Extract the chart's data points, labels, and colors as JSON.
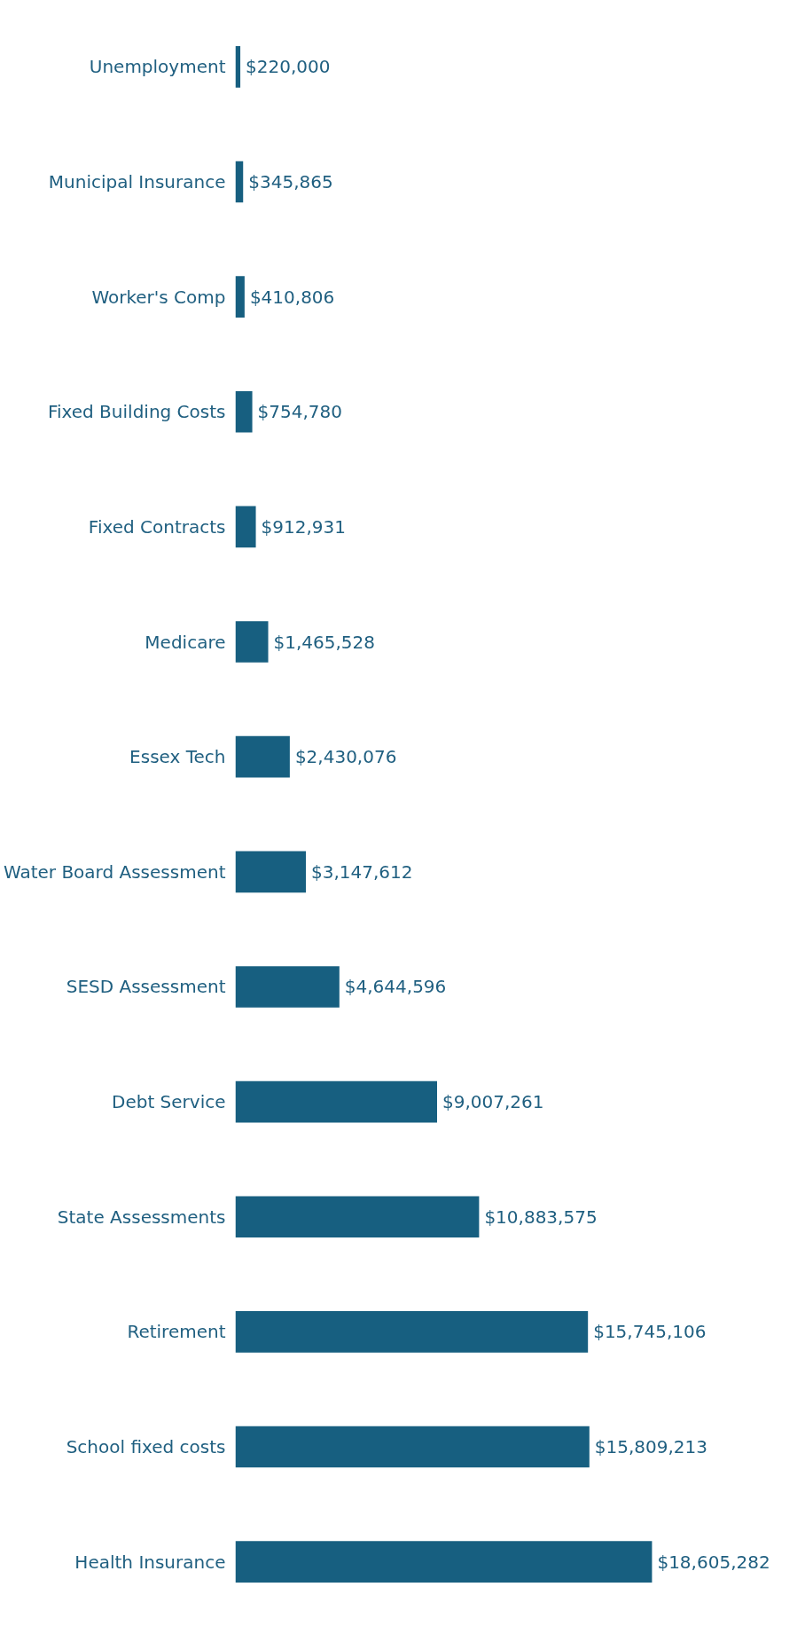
{
  "chart_data": {
    "type": "bar",
    "orientation": "horizontal",
    "categories": [
      "Unemployment",
      "Municipal Insurance",
      "Worker's Comp",
      "Fixed Building Costs",
      "Fixed Contracts",
      "Medicare",
      "Essex Tech",
      "Water Board Assessment",
      "SESD Assessment",
      "Debt Service",
      "State Assessments",
      "Retirement",
      "School fixed costs",
      "Health Insurance"
    ],
    "values": [
      220000,
      345865,
      410806,
      754780,
      912931,
      1465528,
      2430076,
      3147612,
      4644596,
      9007261,
      10883575,
      15745106,
      15809213,
      18605282
    ],
    "color": "#175f80",
    "data_labels": true,
    "value_labels": [
      "$220,000",
      "$345,865",
      "$410,806",
      "$754,780",
      "$912,931",
      "$1,465,528",
      "$2,430,076",
      "$3,147,612",
      "$4,644,596",
      "$9,007,261",
      "$10,883,575",
      "$15,745,106",
      "$15,809,213",
      "$18,605,282"
    ],
    "tick_labels": "y",
    "grid": false
  }
}
